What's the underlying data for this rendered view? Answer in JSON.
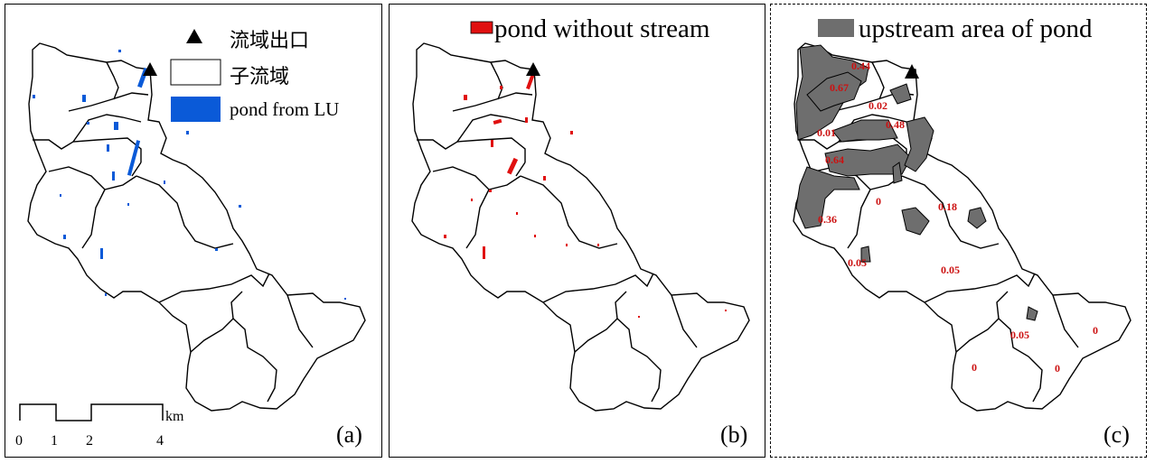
{
  "panels": {
    "a": {
      "label": "(a)",
      "legend": {
        "outlet": "流域出口",
        "subbasin": "子流域",
        "pond": "pond from LU"
      },
      "scale_bar": {
        "ticks": [
          "0",
          "1",
          "2",
          "4"
        ],
        "unit": "km"
      }
    },
    "b": {
      "label": "(b)",
      "legend": {
        "pond": "pond without stream"
      }
    },
    "c": {
      "label": "(c)",
      "legend": {
        "upstream": "upstream area of pond"
      },
      "subbasin_values": [
        "0.44",
        "0.67",
        "0.02",
        "0.48",
        "0.01",
        "0.64",
        "0",
        "0.18",
        "0.36",
        "0.05",
        "0.05",
        "0.05",
        "0",
        "0",
        "0"
      ]
    }
  },
  "colors": {
    "pond_lu": "#0a5ad8",
    "pond_without_stream": "#e01010",
    "upstream_area": "#6e6e6e",
    "value_text": "#cc1111",
    "boundary": "#000000"
  },
  "icons": {
    "outlet": "filled-black-triangle"
  }
}
